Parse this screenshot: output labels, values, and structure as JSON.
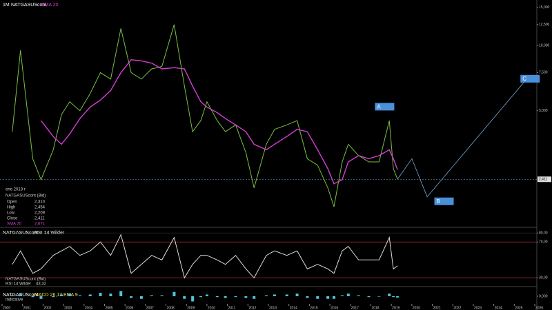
{
  "chart_data": [
    {
      "type": "line",
      "timeframe": "1M",
      "title": "NATGASUScont",
      "log_scale": true,
      "grid": false,
      "x": [
        2000.5,
        2000.9,
        2001.5,
        2001.9,
        2002.5,
        2002.9,
        2003.3,
        2003.8,
        2004.3,
        2004.8,
        2005.3,
        2005.8,
        2006.3,
        2006.8,
        2007.3,
        2007.8,
        2008.4,
        2008.9,
        2009.3,
        2009.7,
        2010.0,
        2010.5,
        2010.9,
        2011.4,
        2011.9,
        2012.3,
        2012.9,
        2013.3,
        2013.9,
        2014.4,
        2014.9,
        2015.4,
        2015.9,
        2016.2,
        2016.6,
        2016.9,
        2017.4,
        2017.9,
        2018.4,
        2018.9,
        2019.1,
        2019.3
      ],
      "series": [
        {
          "name": "NATGASUScont",
          "color": "#7bc043",
          "values": [
            4000,
            9500,
            3000,
            2400,
            3300,
            4800,
            5500,
            5000,
            6000,
            7500,
            7000,
            12000,
            7500,
            7000,
            7800,
            8000,
            12500,
            6500,
            4000,
            4500,
            5500,
            4500,
            4000,
            4300,
            3200,
            2200,
            3500,
            4100,
            4300,
            4500,
            3000,
            2800,
            2200,
            1800,
            2900,
            3500,
            3100,
            2900,
            2900,
            4500,
            2700,
            2411
          ]
        },
        {
          "name": "SMA 20",
          "color": "#d63fd6",
          "values": [
            null,
            null,
            null,
            4500,
            3800,
            3500,
            3900,
            4600,
            5200,
            5600,
            6200,
            7500,
            8600,
            8500,
            8300,
            7800,
            7900,
            7800,
            6500,
            5500,
            5200,
            4900,
            4600,
            4300,
            4000,
            3500,
            3300,
            3500,
            3800,
            4100,
            4000,
            3300,
            2700,
            2300,
            2400,
            2900,
            3100,
            3000,
            3100,
            3300,
            3000,
            2671
          ]
        }
      ],
      "xlim": [
        2000,
        2026.1
      ],
      "xticks": [
        2000,
        2001,
        2002,
        2003,
        2004,
        2005,
        2006,
        2007,
        2008,
        2009,
        2010,
        2011,
        2012,
        2013,
        2014,
        2015,
        2016,
        2017,
        2018,
        2019,
        2020,
        2021,
        2022,
        2023,
        2024,
        2025,
        2026
      ],
      "ylim": [
        1500,
        16000
      ],
      "yticks": [
        {
          "value": 5000,
          "label": "5,000"
        },
        {
          "value": 7500,
          "label": "7,500"
        },
        {
          "value": 10000,
          "label": "10,000"
        },
        {
          "value": 12500,
          "label": "12,500"
        },
        {
          "value": 15000,
          "label": "15,000"
        }
      ],
      "last_price": {
        "value": 2411,
        "label": "2,411"
      },
      "wave_path": {
        "x": [
          2019.3,
          2020.0,
          2020.75,
          2025.6
        ],
        "values": [
          2411,
          3000,
          2000,
          7000
        ]
      },
      "annotations": [
        {
          "text": "A",
          "x": 2018.2,
          "y": 5200
        },
        {
          "text": "B",
          "x": 2021.1,
          "y": 1900
        },
        {
          "text": "C",
          "x": 2025.3,
          "y": 7000
        }
      ],
      "info_box": {
        "date": "ene 2019 r",
        "source": "NATGASUScont (Bid)",
        "rows": [
          [
            "Open",
            "2,310"
          ],
          [
            "High",
            "2,454"
          ],
          [
            "Low",
            "2,209"
          ],
          [
            "Close",
            "2,411"
          ],
          [
            "SMA 20",
            "2,671"
          ]
        ]
      }
    },
    {
      "type": "line",
      "title": "NATGASUScont",
      "indicator": "RSI 14 Wilder",
      "x": [
        2000.5,
        2000.9,
        2001.5,
        2001.9,
        2002.5,
        2002.9,
        2003.3,
        2003.8,
        2004.3,
        2004.8,
        2005.3,
        2005.8,
        2006.3,
        2006.8,
        2007.3,
        2007.8,
        2008.4,
        2008.9,
        2009.3,
        2009.7,
        2010.0,
        2010.5,
        2010.9,
        2011.4,
        2011.9,
        2012.3,
        2012.9,
        2013.3,
        2013.9,
        2014.4,
        2014.9,
        2015.4,
        2015.9,
        2016.2,
        2016.6,
        2016.9,
        2017.4,
        2017.9,
        2018.4,
        2018.9,
        2019.1,
        2019.3
      ],
      "series": [
        {
          "name": "RSI 14 Wilder",
          "color": "#dddddd",
          "values": [
            45,
            60,
            35,
            40,
            55,
            60,
            65,
            55,
            60,
            70,
            55,
            78,
            35,
            45,
            55,
            50,
            75,
            30,
            45,
            55,
            55,
            50,
            45,
            55,
            40,
            30,
            55,
            60,
            55,
            60,
            40,
            45,
            40,
            35,
            60,
            65,
            50,
            50,
            50,
            75,
            40,
            43.32
          ]
        }
      ],
      "xlim": [
        2000,
        2026.1
      ],
      "ylim": [
        21,
        84
      ],
      "yticks": [
        {
          "value": 30,
          "label": "30,00"
        },
        {
          "value": 70,
          "label": "70,00"
        },
        {
          "value": 80,
          "label": "80,00"
        }
      ],
      "info_source": "NATGASUScont (Bid)",
      "info_value": "43,32"
    },
    {
      "type": "bar",
      "title": "NATGASUScont",
      "indicator": "MACD 26,12 EMA 9",
      "note": "Indicative",
      "x": [
        2000.5,
        2000.9,
        2001.5,
        2001.9,
        2002.5,
        2002.9,
        2003.3,
        2003.8,
        2004.3,
        2004.8,
        2005.3,
        2005.8,
        2006.3,
        2006.8,
        2007.3,
        2007.8,
        2008.4,
        2008.9,
        2009.3,
        2009.7,
        2010.0,
        2010.5,
        2010.9,
        2011.4,
        2011.9,
        2012.3,
        2012.9,
        2013.3,
        2013.9,
        2014.4,
        2014.9,
        2015.4,
        2015.9,
        2016.2,
        2016.6,
        2016.9,
        2017.4,
        2017.9,
        2018.4,
        2018.9,
        2019.1,
        2019.3
      ],
      "values": [
        100,
        300,
        -100,
        -300,
        -100,
        200,
        300,
        100,
        200,
        400,
        300,
        600,
        -200,
        -300,
        100,
        100,
        500,
        -300,
        -600,
        -100,
        200,
        -100,
        -200,
        -100,
        -200,
        -300,
        100,
        200,
        200,
        300,
        -200,
        -300,
        -300,
        -300,
        100,
        300,
        100,
        -100,
        -50,
        300,
        -100,
        -150
      ],
      "color": "#4fc3d9",
      "xlim": [
        2000,
        2026.1
      ],
      "ylim": [
        -800,
        800
      ],
      "yticks": [
        {
          "value": 0,
          "label": "0,000"
        }
      ]
    }
  ]
}
